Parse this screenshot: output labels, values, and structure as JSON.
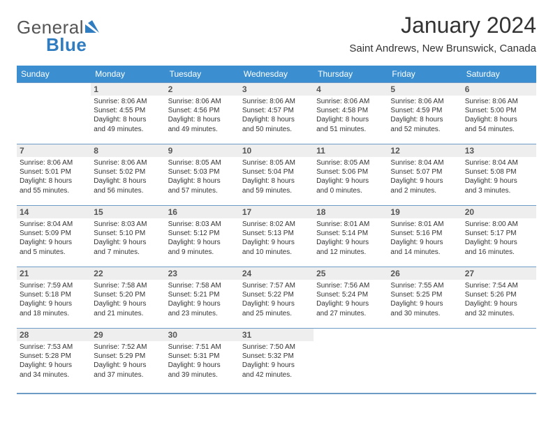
{
  "logo": {
    "text_prefix": "General",
    "text_suffix": "Blue"
  },
  "header": {
    "title": "January 2024",
    "subtitle": "Saint Andrews, New Brunswick, Canada"
  },
  "colors": {
    "header_bg": "#3b8fd1",
    "header_fg": "#ffffff",
    "row_border": "#6d9bc6",
    "daynum_bg": "#eeeeee",
    "text": "#333333",
    "logo_gray": "#555555",
    "logo_blue": "#2f7cc0",
    "page_bg": "#ffffff"
  },
  "typography": {
    "title_fontsize": 32,
    "subtitle_fontsize": 15,
    "dayheader_fontsize": 12,
    "cell_fontsize": 10,
    "daynum_fontsize": 12
  },
  "day_headers": [
    "Sunday",
    "Monday",
    "Tuesday",
    "Wednesday",
    "Thursday",
    "Friday",
    "Saturday"
  ],
  "weeks": [
    [
      {
        "day": "",
        "sunrise": "",
        "sunset": "",
        "daylight1": "",
        "daylight2": ""
      },
      {
        "day": "1",
        "sunrise": "Sunrise: 8:06 AM",
        "sunset": "Sunset: 4:55 PM",
        "daylight1": "Daylight: 8 hours",
        "daylight2": "and 49 minutes."
      },
      {
        "day": "2",
        "sunrise": "Sunrise: 8:06 AM",
        "sunset": "Sunset: 4:56 PM",
        "daylight1": "Daylight: 8 hours",
        "daylight2": "and 49 minutes."
      },
      {
        "day": "3",
        "sunrise": "Sunrise: 8:06 AM",
        "sunset": "Sunset: 4:57 PM",
        "daylight1": "Daylight: 8 hours",
        "daylight2": "and 50 minutes."
      },
      {
        "day": "4",
        "sunrise": "Sunrise: 8:06 AM",
        "sunset": "Sunset: 4:58 PM",
        "daylight1": "Daylight: 8 hours",
        "daylight2": "and 51 minutes."
      },
      {
        "day": "5",
        "sunrise": "Sunrise: 8:06 AM",
        "sunset": "Sunset: 4:59 PM",
        "daylight1": "Daylight: 8 hours",
        "daylight2": "and 52 minutes."
      },
      {
        "day": "6",
        "sunrise": "Sunrise: 8:06 AM",
        "sunset": "Sunset: 5:00 PM",
        "daylight1": "Daylight: 8 hours",
        "daylight2": "and 54 minutes."
      }
    ],
    [
      {
        "day": "7",
        "sunrise": "Sunrise: 8:06 AM",
        "sunset": "Sunset: 5:01 PM",
        "daylight1": "Daylight: 8 hours",
        "daylight2": "and 55 minutes."
      },
      {
        "day": "8",
        "sunrise": "Sunrise: 8:06 AM",
        "sunset": "Sunset: 5:02 PM",
        "daylight1": "Daylight: 8 hours",
        "daylight2": "and 56 minutes."
      },
      {
        "day": "9",
        "sunrise": "Sunrise: 8:05 AM",
        "sunset": "Sunset: 5:03 PM",
        "daylight1": "Daylight: 8 hours",
        "daylight2": "and 57 minutes."
      },
      {
        "day": "10",
        "sunrise": "Sunrise: 8:05 AM",
        "sunset": "Sunset: 5:04 PM",
        "daylight1": "Daylight: 8 hours",
        "daylight2": "and 59 minutes."
      },
      {
        "day": "11",
        "sunrise": "Sunrise: 8:05 AM",
        "sunset": "Sunset: 5:06 PM",
        "daylight1": "Daylight: 9 hours",
        "daylight2": "and 0 minutes."
      },
      {
        "day": "12",
        "sunrise": "Sunrise: 8:04 AM",
        "sunset": "Sunset: 5:07 PM",
        "daylight1": "Daylight: 9 hours",
        "daylight2": "and 2 minutes."
      },
      {
        "day": "13",
        "sunrise": "Sunrise: 8:04 AM",
        "sunset": "Sunset: 5:08 PM",
        "daylight1": "Daylight: 9 hours",
        "daylight2": "and 3 minutes."
      }
    ],
    [
      {
        "day": "14",
        "sunrise": "Sunrise: 8:04 AM",
        "sunset": "Sunset: 5:09 PM",
        "daylight1": "Daylight: 9 hours",
        "daylight2": "and 5 minutes."
      },
      {
        "day": "15",
        "sunrise": "Sunrise: 8:03 AM",
        "sunset": "Sunset: 5:10 PM",
        "daylight1": "Daylight: 9 hours",
        "daylight2": "and 7 minutes."
      },
      {
        "day": "16",
        "sunrise": "Sunrise: 8:03 AM",
        "sunset": "Sunset: 5:12 PM",
        "daylight1": "Daylight: 9 hours",
        "daylight2": "and 9 minutes."
      },
      {
        "day": "17",
        "sunrise": "Sunrise: 8:02 AM",
        "sunset": "Sunset: 5:13 PM",
        "daylight1": "Daylight: 9 hours",
        "daylight2": "and 10 minutes."
      },
      {
        "day": "18",
        "sunrise": "Sunrise: 8:01 AM",
        "sunset": "Sunset: 5:14 PM",
        "daylight1": "Daylight: 9 hours",
        "daylight2": "and 12 minutes."
      },
      {
        "day": "19",
        "sunrise": "Sunrise: 8:01 AM",
        "sunset": "Sunset: 5:16 PM",
        "daylight1": "Daylight: 9 hours",
        "daylight2": "and 14 minutes."
      },
      {
        "day": "20",
        "sunrise": "Sunrise: 8:00 AM",
        "sunset": "Sunset: 5:17 PM",
        "daylight1": "Daylight: 9 hours",
        "daylight2": "and 16 minutes."
      }
    ],
    [
      {
        "day": "21",
        "sunrise": "Sunrise: 7:59 AM",
        "sunset": "Sunset: 5:18 PM",
        "daylight1": "Daylight: 9 hours",
        "daylight2": "and 18 minutes."
      },
      {
        "day": "22",
        "sunrise": "Sunrise: 7:58 AM",
        "sunset": "Sunset: 5:20 PM",
        "daylight1": "Daylight: 9 hours",
        "daylight2": "and 21 minutes."
      },
      {
        "day": "23",
        "sunrise": "Sunrise: 7:58 AM",
        "sunset": "Sunset: 5:21 PM",
        "daylight1": "Daylight: 9 hours",
        "daylight2": "and 23 minutes."
      },
      {
        "day": "24",
        "sunrise": "Sunrise: 7:57 AM",
        "sunset": "Sunset: 5:22 PM",
        "daylight1": "Daylight: 9 hours",
        "daylight2": "and 25 minutes."
      },
      {
        "day": "25",
        "sunrise": "Sunrise: 7:56 AM",
        "sunset": "Sunset: 5:24 PM",
        "daylight1": "Daylight: 9 hours",
        "daylight2": "and 27 minutes."
      },
      {
        "day": "26",
        "sunrise": "Sunrise: 7:55 AM",
        "sunset": "Sunset: 5:25 PM",
        "daylight1": "Daylight: 9 hours",
        "daylight2": "and 30 minutes."
      },
      {
        "day": "27",
        "sunrise": "Sunrise: 7:54 AM",
        "sunset": "Sunset: 5:26 PM",
        "daylight1": "Daylight: 9 hours",
        "daylight2": "and 32 minutes."
      }
    ],
    [
      {
        "day": "28",
        "sunrise": "Sunrise: 7:53 AM",
        "sunset": "Sunset: 5:28 PM",
        "daylight1": "Daylight: 9 hours",
        "daylight2": "and 34 minutes."
      },
      {
        "day": "29",
        "sunrise": "Sunrise: 7:52 AM",
        "sunset": "Sunset: 5:29 PM",
        "daylight1": "Daylight: 9 hours",
        "daylight2": "and 37 minutes."
      },
      {
        "day": "30",
        "sunrise": "Sunrise: 7:51 AM",
        "sunset": "Sunset: 5:31 PM",
        "daylight1": "Daylight: 9 hours",
        "daylight2": "and 39 minutes."
      },
      {
        "day": "31",
        "sunrise": "Sunrise: 7:50 AM",
        "sunset": "Sunset: 5:32 PM",
        "daylight1": "Daylight: 9 hours",
        "daylight2": "and 42 minutes."
      },
      {
        "day": "",
        "sunrise": "",
        "sunset": "",
        "daylight1": "",
        "daylight2": ""
      },
      {
        "day": "",
        "sunrise": "",
        "sunset": "",
        "daylight1": "",
        "daylight2": ""
      },
      {
        "day": "",
        "sunrise": "",
        "sunset": "",
        "daylight1": "",
        "daylight2": ""
      }
    ]
  ]
}
